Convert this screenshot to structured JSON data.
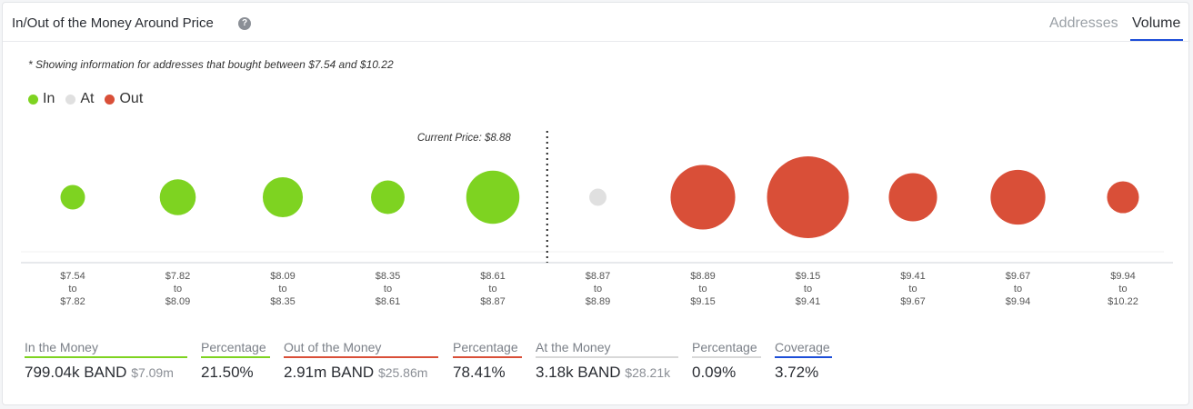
{
  "header": {
    "title": "In/Out of the Money Around Price",
    "tabs": [
      "Addresses",
      "Volume"
    ],
    "active_tab": "Volume"
  },
  "note": "* Showing information for addresses that bought between $7.54 and $10.22",
  "legend": [
    {
      "label": "In",
      "color": "#7ed321"
    },
    {
      "label": "At",
      "color": "#e0e0e0"
    },
    {
      "label": "Out",
      "color": "#d94f38"
    }
  ],
  "chart_data": {
    "type": "scatter",
    "annotation": "Current Price: $8.88",
    "categories": [
      [
        "$7.54",
        "to",
        "$7.82"
      ],
      [
        "$7.82",
        "to",
        "$8.09"
      ],
      [
        "$8.09",
        "to",
        "$8.35"
      ],
      [
        "$8.35",
        "to",
        "$8.61"
      ],
      [
        "$8.61",
        "to",
        "$8.87"
      ],
      [
        "$8.87",
        "to",
        "$8.89"
      ],
      [
        "$8.89",
        "to",
        "$9.15"
      ],
      [
        "$9.15",
        "to",
        "$9.41"
      ],
      [
        "$9.41",
        "to",
        "$9.67"
      ],
      [
        "$9.67",
        "to",
        "$9.94"
      ],
      [
        "$9.94",
        "to",
        "$10.22"
      ]
    ],
    "status": [
      "in",
      "in",
      "in",
      "in",
      "in",
      "at",
      "out",
      "out",
      "out",
      "out",
      "out"
    ],
    "relative_size": [
      0.3,
      0.44,
      0.49,
      0.41,
      0.65,
      0.21,
      0.79,
      1.0,
      0.59,
      0.67,
      0.39
    ],
    "current_price_after_index": 4,
    "colors": {
      "in": "#7ed321",
      "at": "#e0e0e0",
      "out": "#d94f38"
    }
  },
  "stats": [
    {
      "label": "In the Money",
      "value": "799.04k BAND",
      "sub": "$7.09m",
      "color": "#7ed321"
    },
    {
      "label": "Percentage",
      "value": "21.50%",
      "sub": "",
      "color": "#7ed321"
    },
    {
      "label": "Out of the Money",
      "value": "2.91m BAND",
      "sub": "$25.86m",
      "color": "#d94f38"
    },
    {
      "label": "Percentage",
      "value": "78.41%",
      "sub": "",
      "color": "#d94f38"
    },
    {
      "label": "At the Money",
      "value": "3.18k BAND",
      "sub": "$28.21k",
      "color": "#d8d8d8"
    },
    {
      "label": "Percentage",
      "value": "0.09%",
      "sub": "",
      "color": "#d8d8d8"
    },
    {
      "label": "Coverage",
      "value": "3.72%",
      "sub": "",
      "color": "#1d4ed8"
    }
  ]
}
